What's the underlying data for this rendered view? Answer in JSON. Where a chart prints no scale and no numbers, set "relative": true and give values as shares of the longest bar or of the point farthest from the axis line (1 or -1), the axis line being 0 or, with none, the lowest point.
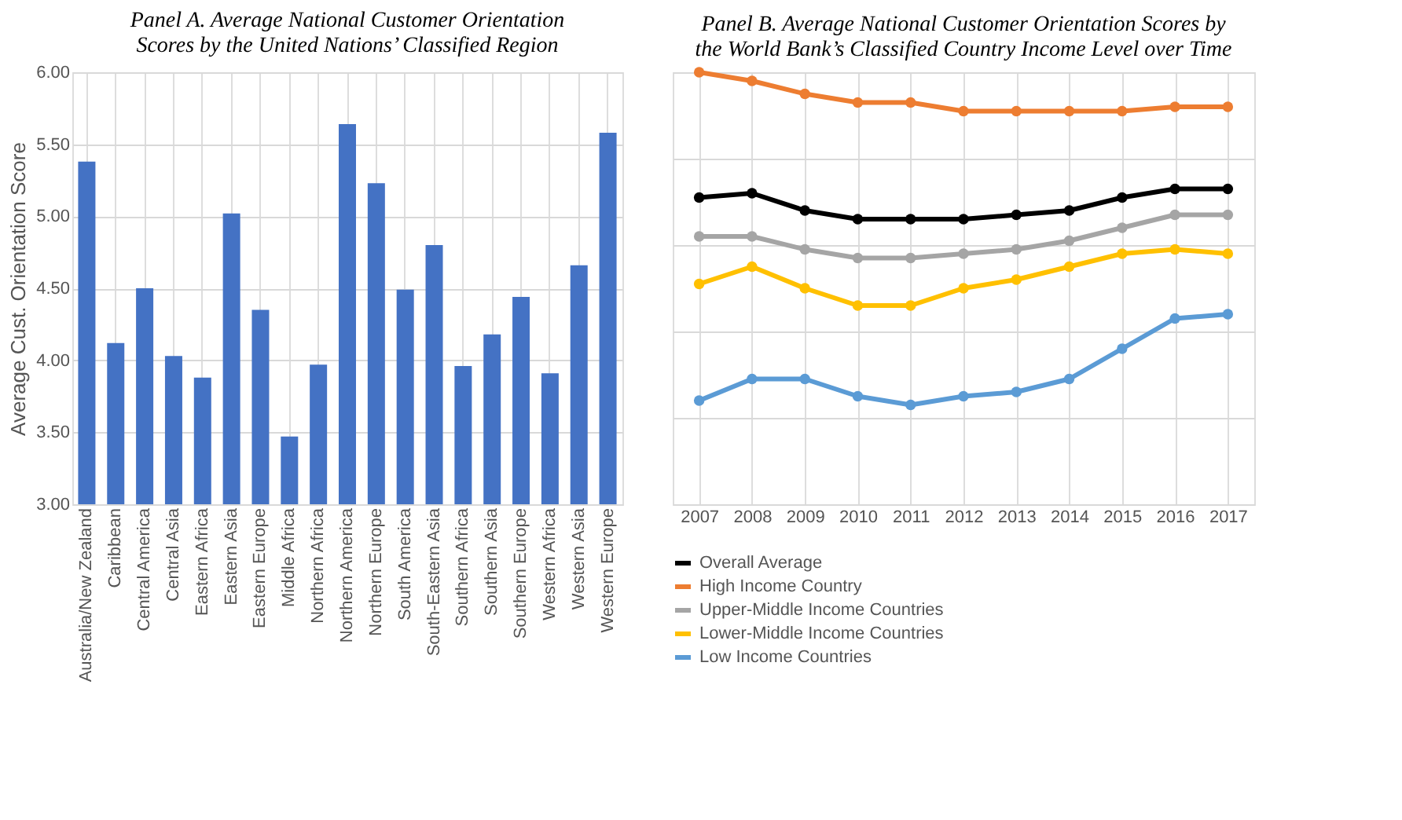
{
  "chart_data": [
    {
      "type": "bar",
      "title": "Panel A. Average National Customer Orientation Scores by the United Nations’ Classified Region",
      "ylabel": "Average Cust. Orientation Score",
      "categories": [
        "Australia/New Zealand",
        "Caribbean",
        "Central America",
        "Central Asia",
        "Eastern Africa",
        "Eastern Asia",
        "Eastern Europe",
        "Middle Africa",
        "Northern Africa",
        "Northern America",
        "Northern Europe",
        "South America",
        "South-Eastern Asia",
        "Southern Africa",
        "Southern Asia",
        "Southern Europe",
        "Western Africa",
        "Western Asia",
        "Western Europe"
      ],
      "values": [
        5.38,
        4.12,
        4.5,
        4.03,
        3.88,
        5.02,
        4.35,
        3.47,
        3.97,
        5.64,
        5.23,
        4.49,
        4.8,
        3.96,
        4.18,
        4.44,
        3.91,
        4.66,
        5.58
      ],
      "color": "#4472c4",
      "ylim": [
        3,
        6
      ],
      "yticks": [
        {
          "value": 3,
          "label": "3.00"
        },
        {
          "value": 3.5,
          "label": "3.50"
        },
        {
          "value": 4,
          "label": "4.00"
        },
        {
          "value": 4.5,
          "label": "4.50"
        },
        {
          "value": 5,
          "label": "5.00"
        },
        {
          "value": 5.5,
          "label": "5.50"
        },
        {
          "value": 6,
          "label": "6.00"
        }
      ],
      "grid": true
    },
    {
      "type": "line",
      "title": "Panel B. Average National Customer Orientation Scores by the World Bank’s Classified Country Income Level over Time",
      "relative": true,
      "categories": [
        "2007",
        "2008",
        "2009",
        "2010",
        "2011",
        "2012",
        "2013",
        "2014",
        "2015",
        "2016",
        "2017"
      ],
      "series": [
        {
          "name": "Overall Average",
          "color": "#000000",
          "values": [
            0.71,
            0.72,
            0.68,
            0.66,
            0.66,
            0.66,
            0.67,
            0.68,
            0.71,
            0.73,
            0.73
          ]
        },
        {
          "name": "High Income Country",
          "color": "#ed7d31",
          "values": [
            1.0,
            0.98,
            0.95,
            0.93,
            0.93,
            0.91,
            0.91,
            0.91,
            0.91,
            0.92,
            0.92
          ]
        },
        {
          "name": "Upper-Middle Income Countries",
          "color": "#a5a5a5",
          "values": [
            0.62,
            0.62,
            0.59,
            0.57,
            0.57,
            0.58,
            0.59,
            0.61,
            0.64,
            0.67,
            0.67
          ]
        },
        {
          "name": "Lower-Middle Income Countries",
          "color": "#ffc000",
          "values": [
            0.51,
            0.55,
            0.5,
            0.46,
            0.46,
            0.5,
            0.52,
            0.55,
            0.58,
            0.59,
            0.58
          ]
        },
        {
          "name": "Low Income Countries",
          "color": "#5b9bd5",
          "values": [
            0.24,
            0.29,
            0.29,
            0.25,
            0.23,
            0.25,
            0.26,
            0.29,
            0.36,
            0.43,
            0.44
          ]
        }
      ],
      "marker": "circle",
      "grid": true,
      "legend": "bottom",
      "tick_labels": "x"
    }
  ]
}
